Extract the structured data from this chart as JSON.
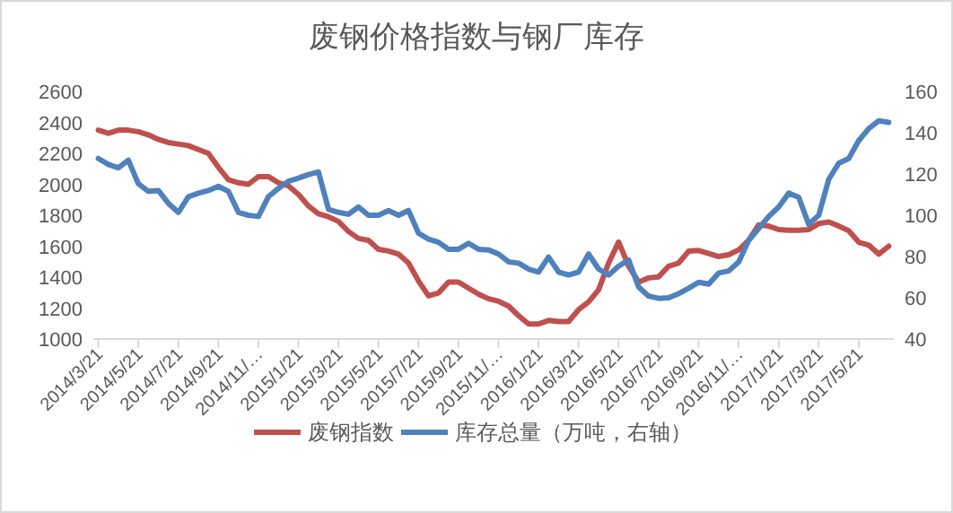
{
  "chart_data": {
    "type": "line",
    "title": "废钢价格指数与钢厂库存",
    "categories": [
      "2014/3/21",
      null,
      null,
      null,
      "2014/5/21",
      null,
      null,
      null,
      "2014/7/21",
      null,
      null,
      null,
      "2014/9/21",
      null,
      null,
      null,
      "2014/11/…",
      null,
      null,
      null,
      "2015/1/21",
      null,
      null,
      null,
      "2015/3/21",
      null,
      null,
      null,
      "2015/5/21",
      null,
      null,
      null,
      "2015/7/21",
      null,
      null,
      null,
      "2015/9/21",
      null,
      null,
      null,
      "2015/11/…",
      null,
      null,
      null,
      "2016/1/21",
      null,
      null,
      null,
      "2016/3/21",
      null,
      null,
      null,
      "2016/5/21",
      null,
      null,
      null,
      "2016/7/21",
      null,
      null,
      null,
      "2016/9/21",
      null,
      null,
      null,
      "2016/11/…",
      null,
      null,
      null,
      "2017/1/21",
      null,
      null,
      null,
      "2017/3/21",
      null,
      null,
      null,
      "2017/5/21",
      null,
      null,
      null
    ],
    "series": [
      {
        "name": "废钢指数",
        "color": "#c0504d",
        "values": [
          2350,
          2330,
          2350,
          2350,
          2340,
          2320,
          2290,
          2270,
          2260,
          2250,
          2225,
          2200,
          2110,
          2030,
          2010,
          2000,
          2050,
          2050,
          2010,
          1990,
          1935,
          1860,
          1810,
          1790,
          1760,
          1695,
          1650,
          1638,
          1580,
          1569,
          1549,
          1491,
          1375,
          1279,
          1298,
          1368,
          1368,
          1329,
          1290,
          1260,
          1244,
          1213,
          1151,
          1097,
          1097,
          1120,
          1113,
          1113,
          1190,
          1240,
          1318,
          1491,
          1627,
          1472,
          1368,
          1395,
          1402,
          1471,
          1491,
          1568,
          1572,
          1553,
          1533,
          1545,
          1576,
          1638,
          1738,
          1730,
          1707,
          1703,
          1703,
          1707,
          1746,
          1757,
          1730,
          1700,
          1626,
          1607,
          1549,
          1600
        ]
      },
      {
        "name": "库存总量（万吨，右轴）",
        "color": "#4f81bd",
        "axis": "y2",
        "values": [
          127.5,
          124.6,
          123,
          126.7,
          115.3,
          111.6,
          112,
          105.8,
          101.4,
          109,
          110.7,
          112,
          114,
          111.6,
          101.4,
          100,
          99.4,
          109,
          113,
          116.5,
          118,
          119.7,
          121,
          102.9,
          101.4,
          100.5,
          104,
          100,
          100,
          102.3,
          100,
          102.3,
          91.3,
          88.4,
          86.9,
          83.5,
          83.5,
          86.4,
          83.5,
          83.2,
          81.2,
          77.4,
          76.8,
          73.9,
          72.5,
          79.7,
          72.5,
          71,
          72.5,
          81.2,
          73.9,
          71,
          75.3,
          78.3,
          65.2,
          60.8,
          59.7,
          60,
          62,
          64.6,
          67.5,
          66.6,
          72,
          73,
          77.4,
          87.8,
          93.6,
          99.4,
          104,
          110.7,
          108.7,
          95.6,
          100,
          117.4,
          125.2,
          127.5,
          136.2,
          142,
          145.8,
          145
        ]
      }
    ],
    "ylim": [
      1000,
      2600
    ],
    "yticks": [
      1000,
      1200,
      1400,
      1600,
      1800,
      2000,
      2200,
      2400,
      2600
    ],
    "y2lim": [
      40,
      160
    ],
    "y2ticks": [
      40,
      60,
      80,
      100,
      120,
      140,
      160
    ],
    "legend": "bottom"
  }
}
